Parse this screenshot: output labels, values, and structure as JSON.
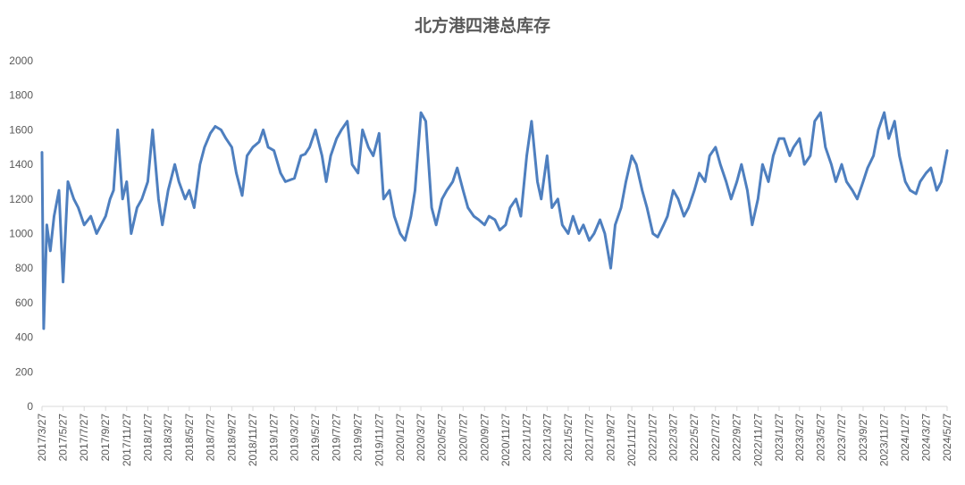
{
  "chart_data": {
    "type": "line",
    "title": "北方港四港总库存",
    "xlabel": "",
    "ylabel": "",
    "ylim": [
      0,
      2000
    ],
    "yticks": [
      0,
      200,
      400,
      600,
      800,
      1000,
      1200,
      1400,
      1600,
      1800,
      2000
    ],
    "grid": false,
    "legend": "none",
    "line_color": "#4E7FBF",
    "x_tick_labels": [
      "2017/3/27",
      "2017/5/27",
      "2017/7/27",
      "2017/9/27",
      "2017/11/27",
      "2018/1/27",
      "2018/3/27",
      "2018/5/27",
      "2018/7/27",
      "2018/9/27",
      "2018/11/27",
      "2019/1/27",
      "2019/3/27",
      "2019/5/27",
      "2019/7/27",
      "2019/9/27",
      "2019/11/27",
      "2020/1/27",
      "2020/3/27",
      "2020/5/27",
      "2020/7/27",
      "2020/9/27",
      "2020/11/27",
      "2021/1/27",
      "2021/3/27",
      "2021/5/27",
      "2021/7/27",
      "2021/9/27",
      "2021/11/27",
      "2022/1/27",
      "2022/3/27",
      "2022/5/27",
      "2022/7/27",
      "2022/9/27",
      "2022/11/27",
      "2023/1/27",
      "2023/3/27",
      "2023/5/27",
      "2023/7/27",
      "2023/9/27",
      "2023/11/27",
      "2024/1/27",
      "2024/3/27",
      "2024/5/27"
    ],
    "series": [
      {
        "x": [
          "2017/3/27",
          "2017/4/1",
          "2017/4/10",
          "2017/4/20",
          "2017/5/1",
          "2017/5/15",
          "2017/5/27",
          "2017/6/10",
          "2017/6/27",
          "2017/7/10",
          "2017/7/27",
          "2017/8/15",
          "2017/9/1",
          "2017/9/27",
          "2017/10/10",
          "2017/10/20",
          "2017/11/1",
          "2017/11/15",
          "2017/11/27",
          "2017/12/10",
          "2017/12/27",
          "2018/1/10",
          "2018/1/27",
          "2018/2/10",
          "2018/2/27",
          "2018/3/10",
          "2018/3/27",
          "2018/4/15",
          "2018/4/27",
          "2018/5/15",
          "2018/5/27",
          "2018/6/10",
          "2018/6/27",
          "2018/7/10",
          "2018/7/27",
          "2018/8/10",
          "2018/8/27",
          "2018/9/10",
          "2018/9/27",
          "2018/10/10",
          "2018/10/27",
          "2018/11/10",
          "2018/11/27",
          "2018/12/15",
          "2018/12/27",
          "2019/1/10",
          "2019/1/27",
          "2019/2/15",
          "2019/3/1",
          "2019/3/27",
          "2019/4/15",
          "2019/4/27",
          "2019/5/10",
          "2019/5/27",
          "2019/6/15",
          "2019/6/27",
          "2019/7/10",
          "2019/7/27",
          "2019/8/10",
          "2019/8/27",
          "2019/9/10",
          "2019/9/27",
          "2019/10/10",
          "2019/10/27",
          "2019/11/10",
          "2019/11/27",
          "2019/12/10",
          "2019/12/27",
          "2020/1/10",
          "2020/1/27",
          "2020/2/10",
          "2020/2/27",
          "2020/3/10",
          "2020/3/27",
          "2020/4/10",
          "2020/4/27",
          "2020/5/10",
          "2020/5/27",
          "2020/6/10",
          "2020/6/27",
          "2020/7/10",
          "2020/7/27",
          "2020/8/10",
          "2020/8/27",
          "2020/9/10",
          "2020/9/27",
          "2020/10/10",
          "2020/10/27",
          "2020/11/10",
          "2020/11/27",
          "2020/12/10",
          "2020/12/27",
          "2021/1/10",
          "2021/1/27",
          "2021/2/10",
          "2021/2/27",
          "2021/3/10",
          "2021/3/27",
          "2021/4/10",
          "2021/4/27",
          "2021/5/10",
          "2021/5/27",
          "2021/6/10",
          "2021/6/27",
          "2021/7/10",
          "2021/7/27",
          "2021/8/10",
          "2021/8/27",
          "2021/9/10",
          "2021/9/27",
          "2021/10/10",
          "2021/10/27",
          "2021/11/10",
          "2021/11/27",
          "2021/12/10",
          "2021/12/27",
          "2022/1/10",
          "2022/1/27",
          "2022/2/10",
          "2022/2/27",
          "2022/3/10",
          "2022/3/27",
          "2022/4/10",
          "2022/4/27",
          "2022/5/10",
          "2022/5/27",
          "2022/6/10",
          "2022/6/27",
          "2022/7/10",
          "2022/7/27",
          "2022/8/10",
          "2022/8/27",
          "2022/9/10",
          "2022/9/27",
          "2022/10/10",
          "2022/10/27",
          "2022/11/10",
          "2022/11/27",
          "2022/12/10",
          "2022/12/27",
          "2023/1/10",
          "2023/1/27",
          "2023/2/10",
          "2023/2/27",
          "2023/3/10",
          "2023/3/27",
          "2023/4/10",
          "2023/4/27",
          "2023/5/10",
          "2023/5/27",
          "2023/6/10",
          "2023/6/27",
          "2023/7/10",
          "2023/7/27",
          "2023/8/10",
          "2023/8/27",
          "2023/9/10",
          "2023/9/27",
          "2023/10/10",
          "2023/10/27",
          "2023/11/10",
          "2023/11/27",
          "2023/12/10",
          "2023/12/27",
          "2024/1/10",
          "2024/1/27",
          "2024/2/10",
          "2024/2/27",
          "2024/3/10",
          "2024/3/27",
          "2024/4/10",
          "2024/4/27",
          "2024/5/10",
          "2024/5/27"
        ],
        "values": [
          1470,
          450,
          1050,
          900,
          1100,
          1250,
          720,
          1300,
          1200,
          1150,
          1050,
          1100,
          1000,
          1100,
          1200,
          1250,
          1600,
          1200,
          1300,
          1000,
          1150,
          1200,
          1300,
          1600,
          1200,
          1050,
          1250,
          1400,
          1300,
          1200,
          1250,
          1150,
          1400,
          1500,
          1580,
          1620,
          1600,
          1550,
          1500,
          1350,
          1220,
          1450,
          1500,
          1530,
          1600,
          1500,
          1480,
          1350,
          1300,
          1320,
          1450,
          1460,
          1500,
          1600,
          1450,
          1300,
          1450,
          1550,
          1600,
          1650,
          1400,
          1350,
          1600,
          1500,
          1450,
          1580,
          1200,
          1250,
          1100,
          1000,
          960,
          1100,
          1250,
          1700,
          1650,
          1150,
          1050,
          1200,
          1250,
          1300,
          1380,
          1250,
          1150,
          1100,
          1080,
          1050,
          1100,
          1080,
          1020,
          1050,
          1150,
          1200,
          1100,
          1450,
          1650,
          1300,
          1200,
          1450,
          1150,
          1200,
          1050,
          1000,
          1100,
          1000,
          1050,
          960,
          1000,
          1080,
          1000,
          800,
          1050,
          1150,
          1300,
          1450,
          1400,
          1250,
          1150,
          1000,
          980,
          1050,
          1100,
          1250,
          1200,
          1100,
          1150,
          1250,
          1350,
          1300,
          1450,
          1500,
          1400,
          1300,
          1200,
          1300,
          1400,
          1250,
          1050,
          1200,
          1400,
          1300,
          1450,
          1550,
          1550,
          1450,
          1500,
          1550,
          1400,
          1450,
          1650,
          1700,
          1500,
          1400,
          1300,
          1400,
          1300,
          1250,
          1200,
          1300,
          1380,
          1450,
          1600,
          1700,
          1550,
          1650,
          1450,
          1300,
          1250,
          1230,
          1300,
          1350,
          1380,
          1250,
          1300,
          1480
        ]
      }
    ]
  }
}
